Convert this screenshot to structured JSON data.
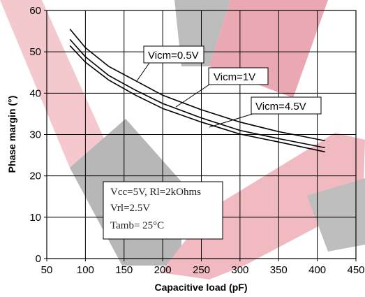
{
  "chart_data": {
    "type": "line",
    "xlabel": "Capacitive load (pF)",
    "ylabel": "Phase margin (°)",
    "xlim": [
      50,
      450
    ],
    "ylim": [
      0,
      60
    ],
    "x_ticks": [
      "50",
      "100",
      "150",
      "200",
      "250",
      "300",
      "350",
      "400",
      "450"
    ],
    "y_ticks": [
      "0",
      "10",
      "20",
      "30",
      "40",
      "50",
      "60"
    ],
    "grid": true,
    "series": [
      {
        "name": "Vicm=0.5V",
        "x": [
          80,
          100,
          130,
          165,
          200,
          250,
          300,
          350,
          410
        ],
        "y": [
          55.5,
          51.0,
          46.5,
          43.0,
          39.5,
          36.0,
          33.0,
          30.7,
          28.5
        ]
      },
      {
        "name": "Vicm=1V",
        "x": [
          80,
          100,
          130,
          165,
          200,
          250,
          300,
          350,
          410
        ],
        "y": [
          53.0,
          48.8,
          44.3,
          40.7,
          37.5,
          34.0,
          31.0,
          29.0,
          26.8
        ]
      },
      {
        "name": "Vicm=4.5V",
        "x": [
          80,
          100,
          130,
          165,
          200,
          250,
          300,
          350,
          410
        ],
        "y": [
          51.5,
          47.5,
          43.2,
          39.5,
          36.3,
          33.0,
          30.1,
          28.2,
          25.8
        ]
      }
    ],
    "conditions": [
      "Vcc=5V, Rl=2kOhms",
      "Vrl=2.5V",
      "Tamb= 25°C"
    ]
  }
}
